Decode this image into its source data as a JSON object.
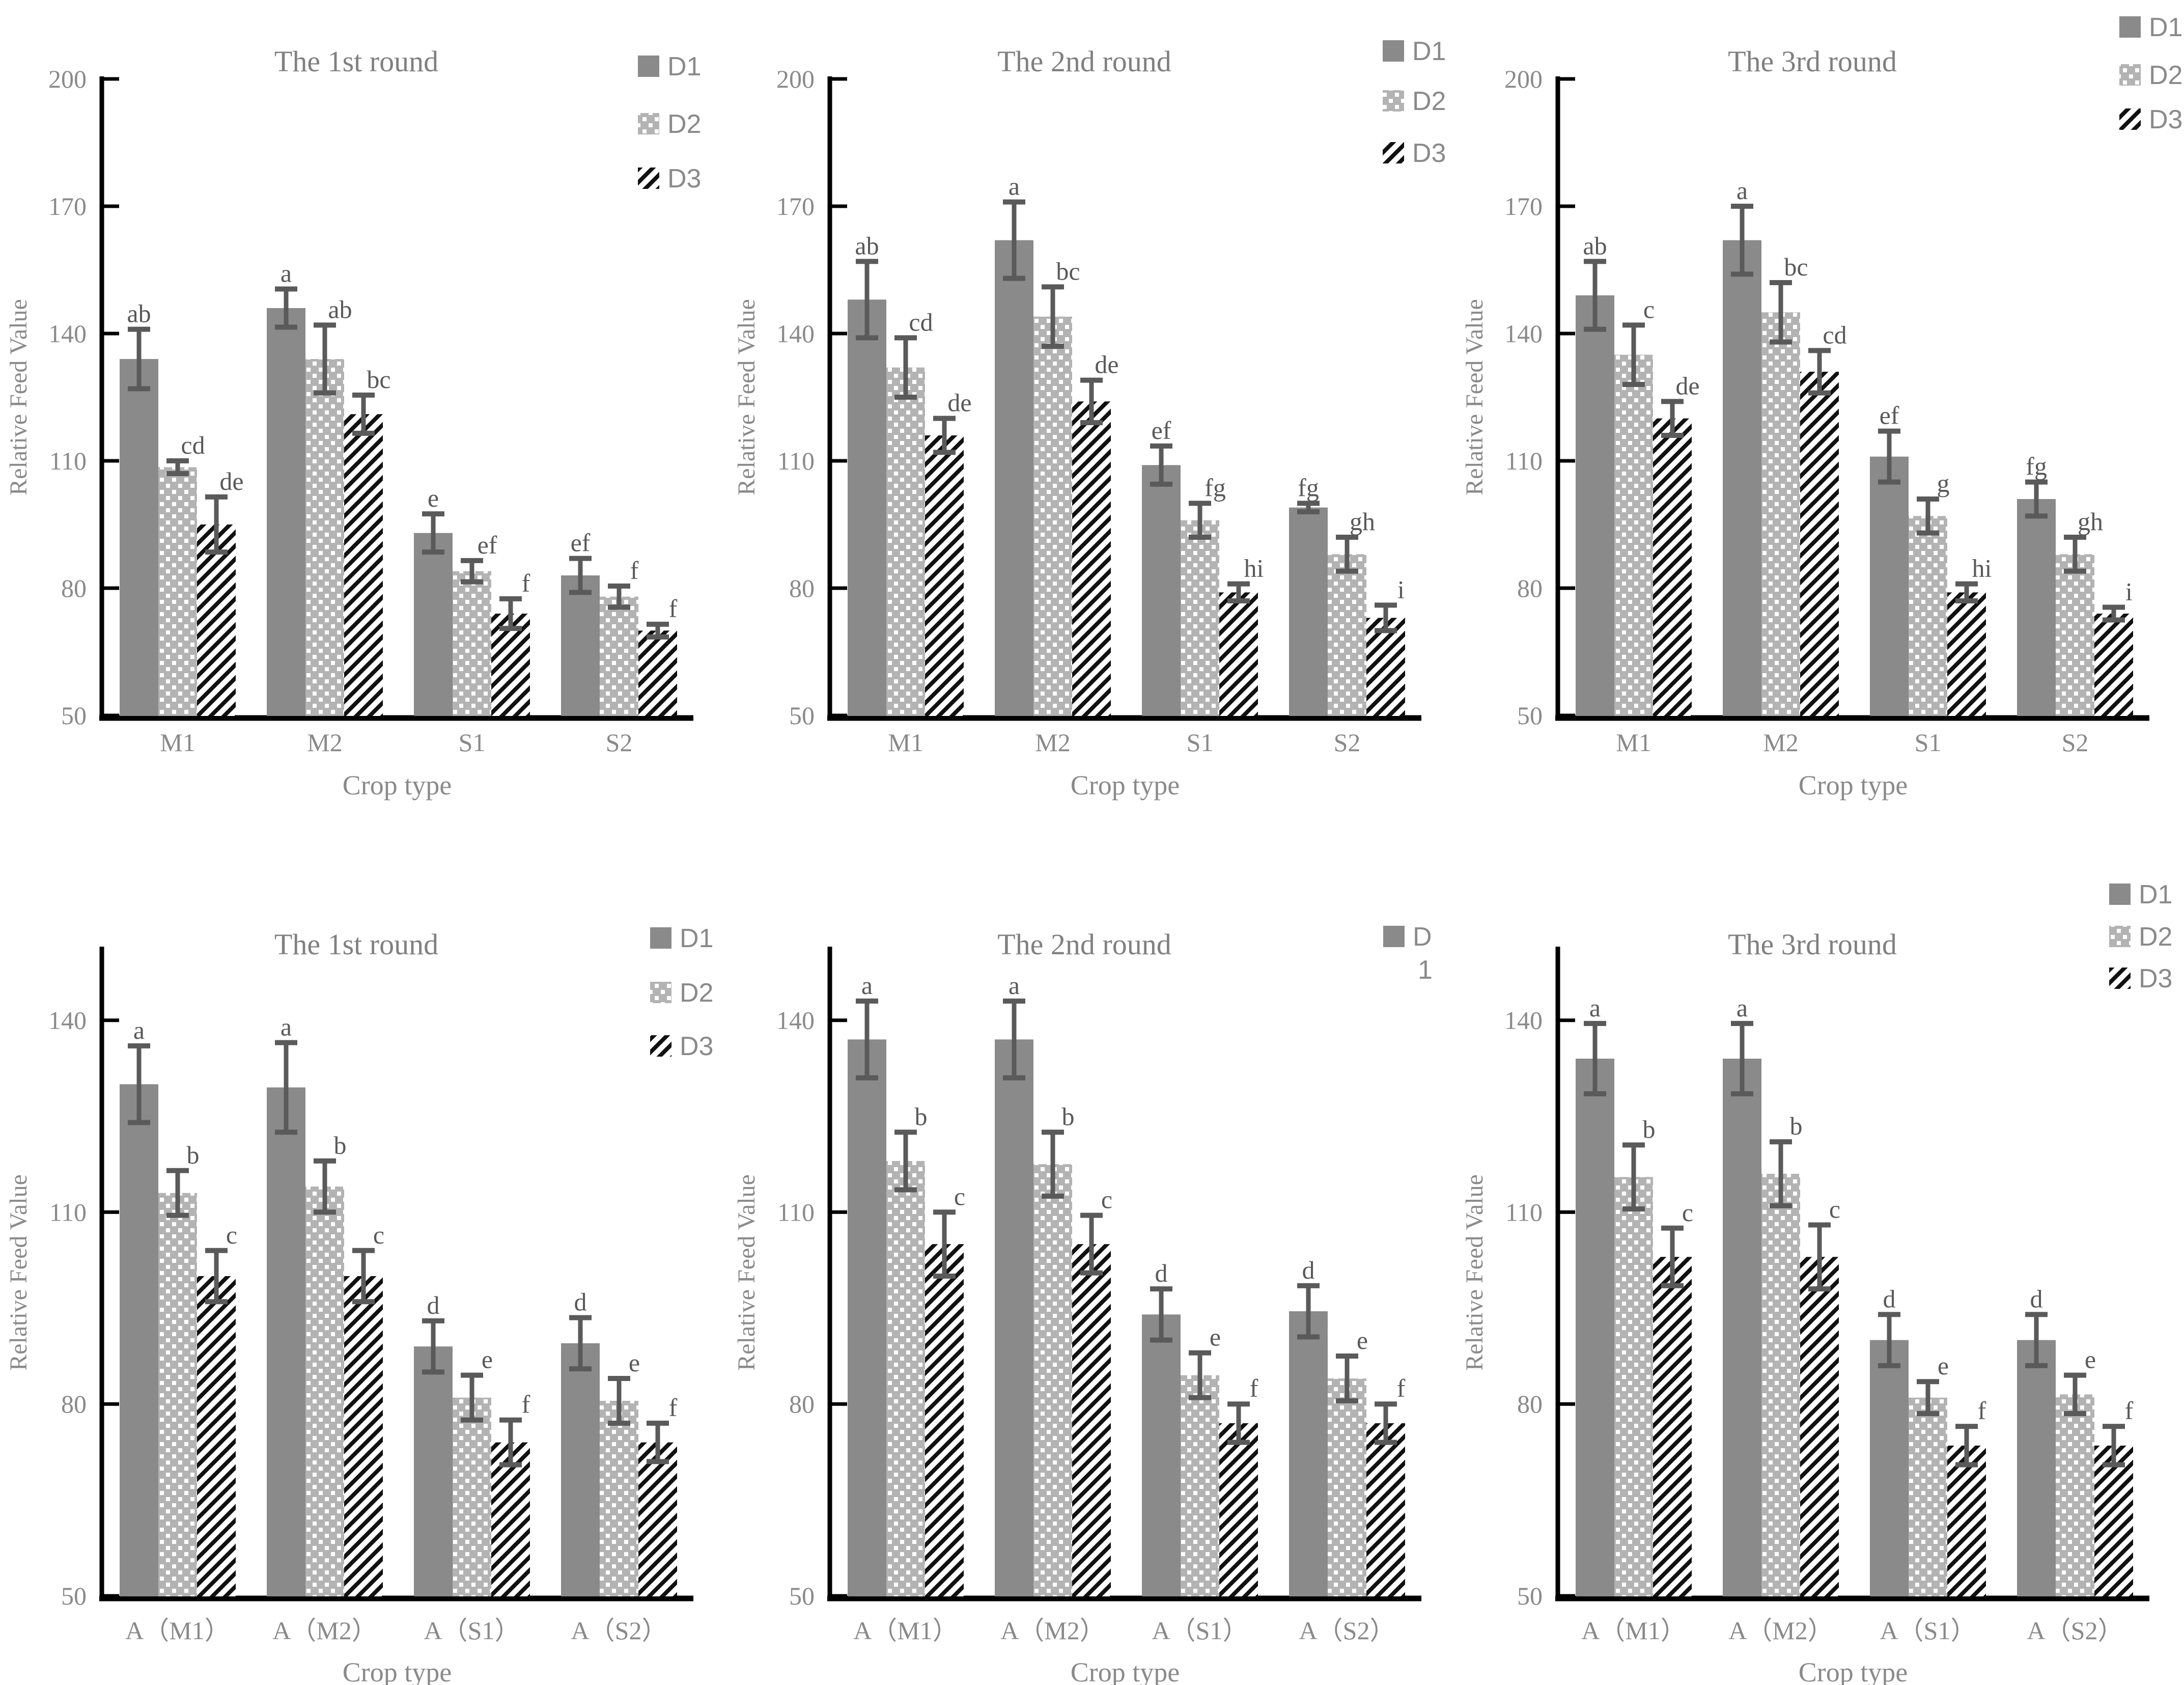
{
  "figure": {
    "ylabel": "Relative Feed Value",
    "xlabel": "Crop type",
    "colors": {
      "d1_fill": "#8a8a8a",
      "d2_base": "#b3b3b3",
      "d2_dot": "#ffffff",
      "d3_bg": "#ffffff",
      "d3_stripe": "#111111",
      "error_bar": "#5a5a5a",
      "axis": "#000000",
      "tick_text": "#8a8a8a",
      "title_text": "#808080",
      "letter_text": "#595959",
      "legend_text": "#8a8a8a"
    }
  },
  "chart_data": [
    {
      "type": "bar",
      "title": "The 1st round",
      "row": "top",
      "ylabel": "Relative Feed Value",
      "xlabel": "Crop type",
      "ylim": [
        50,
        200
      ],
      "yticks": [
        50,
        80,
        110,
        140,
        170,
        200
      ],
      "grid": false,
      "legend_position": "top-right",
      "categories": [
        "M1",
        "M2",
        "S1",
        "S2"
      ],
      "legend": [
        {
          "text": "D1"
        },
        {
          "text": "D2"
        },
        {
          "text": "D3"
        }
      ],
      "series": [
        {
          "name": "D1",
          "values": [
            134,
            146,
            93,
            83
          ],
          "errors": [
            7,
            4.5,
            4.5,
            4
          ],
          "letters": [
            "ab",
            "a",
            "e",
            "ef"
          ]
        },
        {
          "name": "D2",
          "values": [
            108.5,
            134,
            84,
            78
          ],
          "errors": [
            1.5,
            8,
            2.5,
            2.5
          ],
          "letters": [
            "cd",
            "ab",
            "ef",
            "f"
          ]
        },
        {
          "name": "D3",
          "values": [
            95,
            121,
            74,
            70
          ],
          "errors": [
            6.5,
            4.5,
            3.5,
            1.5
          ],
          "letters": [
            "de",
            "bc",
            "f",
            "f"
          ]
        }
      ]
    },
    {
      "type": "bar",
      "title": "The 2nd round",
      "row": "top",
      "ylabel": "Relative Feed Value",
      "xlabel": "Crop type",
      "ylim": [
        50,
        200
      ],
      "yticks": [
        50,
        80,
        110,
        140,
        170,
        200
      ],
      "grid": false,
      "legend_position": "top-right",
      "categories": [
        "M1",
        "M2",
        "S1",
        "S2"
      ],
      "legend": [
        {
          "text": "D1"
        },
        {
          "text": "D2"
        },
        {
          "text": "D3"
        }
      ],
      "series": [
        {
          "name": "D1",
          "values": [
            148,
            162,
            109,
            99
          ],
          "errors": [
            9,
            9,
            4.5,
            1
          ],
          "letters": [
            "ab",
            "a",
            "ef",
            "fg"
          ]
        },
        {
          "name": "D2",
          "values": [
            132,
            144,
            96,
            88
          ],
          "errors": [
            7,
            7,
            4,
            4
          ],
          "letters": [
            "cd",
            "bc",
            "fg",
            "gh"
          ]
        },
        {
          "name": "D3",
          "values": [
            116,
            124,
            79,
            73
          ],
          "errors": [
            4,
            5,
            2,
            3
          ],
          "letters": [
            "de",
            "de",
            "hi",
            "i"
          ]
        }
      ]
    },
    {
      "type": "bar",
      "title": "The 3rd round",
      "row": "top",
      "ylabel": "Relative Feed Value",
      "xlabel": "Crop type",
      "ylim": [
        50,
        200
      ],
      "yticks": [
        50,
        80,
        110,
        140,
        170,
        200
      ],
      "grid": false,
      "legend_position": "top-right",
      "categories": [
        "M1",
        "M2",
        "S1",
        "S2"
      ],
      "legend": [
        {
          "text": "D1"
        },
        {
          "text": "D2"
        },
        {
          "text": "D3"
        }
      ],
      "series": [
        {
          "name": "D1",
          "values": [
            149,
            162,
            111,
            101
          ],
          "errors": [
            8,
            8,
            6,
            4
          ],
          "letters": [
            "ab",
            "a",
            "ef",
            "fg"
          ]
        },
        {
          "name": "D2",
          "values": [
            135,
            145,
            97,
            88
          ],
          "errors": [
            7,
            7,
            4,
            4
          ],
          "letters": [
            "c",
            "bc",
            "g",
            "gh"
          ]
        },
        {
          "name": "D3",
          "values": [
            120,
            131,
            79,
            74
          ],
          "errors": [
            4,
            5,
            2,
            1.5
          ],
          "letters": [
            "de",
            "cd",
            "hi",
            "i"
          ]
        }
      ]
    },
    {
      "type": "bar",
      "title": "The 1st round",
      "row": "bottom",
      "ylabel": "Relative Feed Value",
      "xlabel": "Crop type",
      "ylim": [
        50,
        150
      ],
      "yticks": [
        50,
        80,
        110,
        140
      ],
      "grid": false,
      "legend_position": "top-right",
      "categories": [
        "A（M1）",
        "A（M2）",
        "A（S1）",
        "A（S2）"
      ],
      "legend": [
        {
          "text": "D1"
        },
        {
          "text": "D2"
        },
        {
          "text": "D3"
        }
      ],
      "series": [
        {
          "name": "D1",
          "values": [
            130,
            129.5,
            89,
            89.5
          ],
          "errors": [
            6,
            7,
            4,
            4
          ],
          "letters": [
            "a",
            "a",
            "d",
            "d"
          ]
        },
        {
          "name": "D2",
          "values": [
            113,
            114,
            81,
            80.5
          ],
          "errors": [
            3.5,
            4,
            3.5,
            3.5
          ],
          "letters": [
            "b",
            "b",
            "e",
            "e"
          ]
        },
        {
          "name": "D3",
          "values": [
            100,
            100,
            74,
            74
          ],
          "errors": [
            4,
            4,
            3.5,
            3
          ],
          "letters": [
            "c",
            "c",
            "f",
            "f"
          ]
        }
      ]
    },
    {
      "type": "bar",
      "title": "The 2nd round",
      "row": "bottom",
      "ylabel": "Relative Feed Value",
      "xlabel": "Crop type",
      "ylim": [
        50,
        150
      ],
      "yticks": [
        50,
        80,
        110,
        140
      ],
      "grid": false,
      "legend_position": "top-right",
      "categories": [
        "A（M1）",
        "A（M2）",
        "A（S1）",
        "A（S2）"
      ],
      "legend": [
        {
          "text": "D1",
          "lines": [
            "D",
            "1"
          ]
        }
      ],
      "series": [
        {
          "name": "D1",
          "values": [
            137,
            137,
            94,
            94.5
          ],
          "errors": [
            6,
            6,
            4,
            4
          ],
          "letters": [
            "a",
            "a",
            "d",
            "d"
          ]
        },
        {
          "name": "D2",
          "values": [
            118,
            117.5,
            84.5,
            84
          ],
          "errors": [
            4.5,
            5,
            3.5,
            3.5
          ],
          "letters": [
            "b",
            "b",
            "e",
            "e"
          ]
        },
        {
          "name": "D3",
          "values": [
            105,
            105,
            77,
            77
          ],
          "errors": [
            5,
            4.5,
            3,
            3
          ],
          "letters": [
            "c",
            "c",
            "f",
            "f"
          ]
        }
      ]
    },
    {
      "type": "bar",
      "title": "The 3rd round",
      "row": "bottom",
      "ylabel": "Relative Feed Value",
      "xlabel": "Crop type",
      "ylim": [
        50,
        150
      ],
      "yticks": [
        50,
        80,
        110,
        140
      ],
      "grid": false,
      "legend_position": "top-right",
      "categories": [
        "A（M1）",
        "A（M2）",
        "A（S1）",
        "A（S2）"
      ],
      "legend": [
        {
          "text": "D1"
        },
        {
          "text": "D2"
        },
        {
          "text": "D3"
        }
      ],
      "series": [
        {
          "name": "D1",
          "values": [
            134,
            134,
            90,
            90
          ],
          "errors": [
            5.5,
            5.5,
            4,
            4
          ],
          "letters": [
            "a",
            "a",
            "d",
            "d"
          ]
        },
        {
          "name": "D2",
          "values": [
            115.5,
            116,
            81,
            81.5
          ],
          "errors": [
            5,
            5,
            2.5,
            3
          ],
          "letters": [
            "b",
            "b",
            "e",
            "e"
          ]
        },
        {
          "name": "D3",
          "values": [
            103,
            103,
            73.5,
            73.5
          ],
          "errors": [
            4.5,
            5,
            3,
            3
          ],
          "letters": [
            "c",
            "c",
            "f",
            "f"
          ]
        }
      ]
    }
  ]
}
